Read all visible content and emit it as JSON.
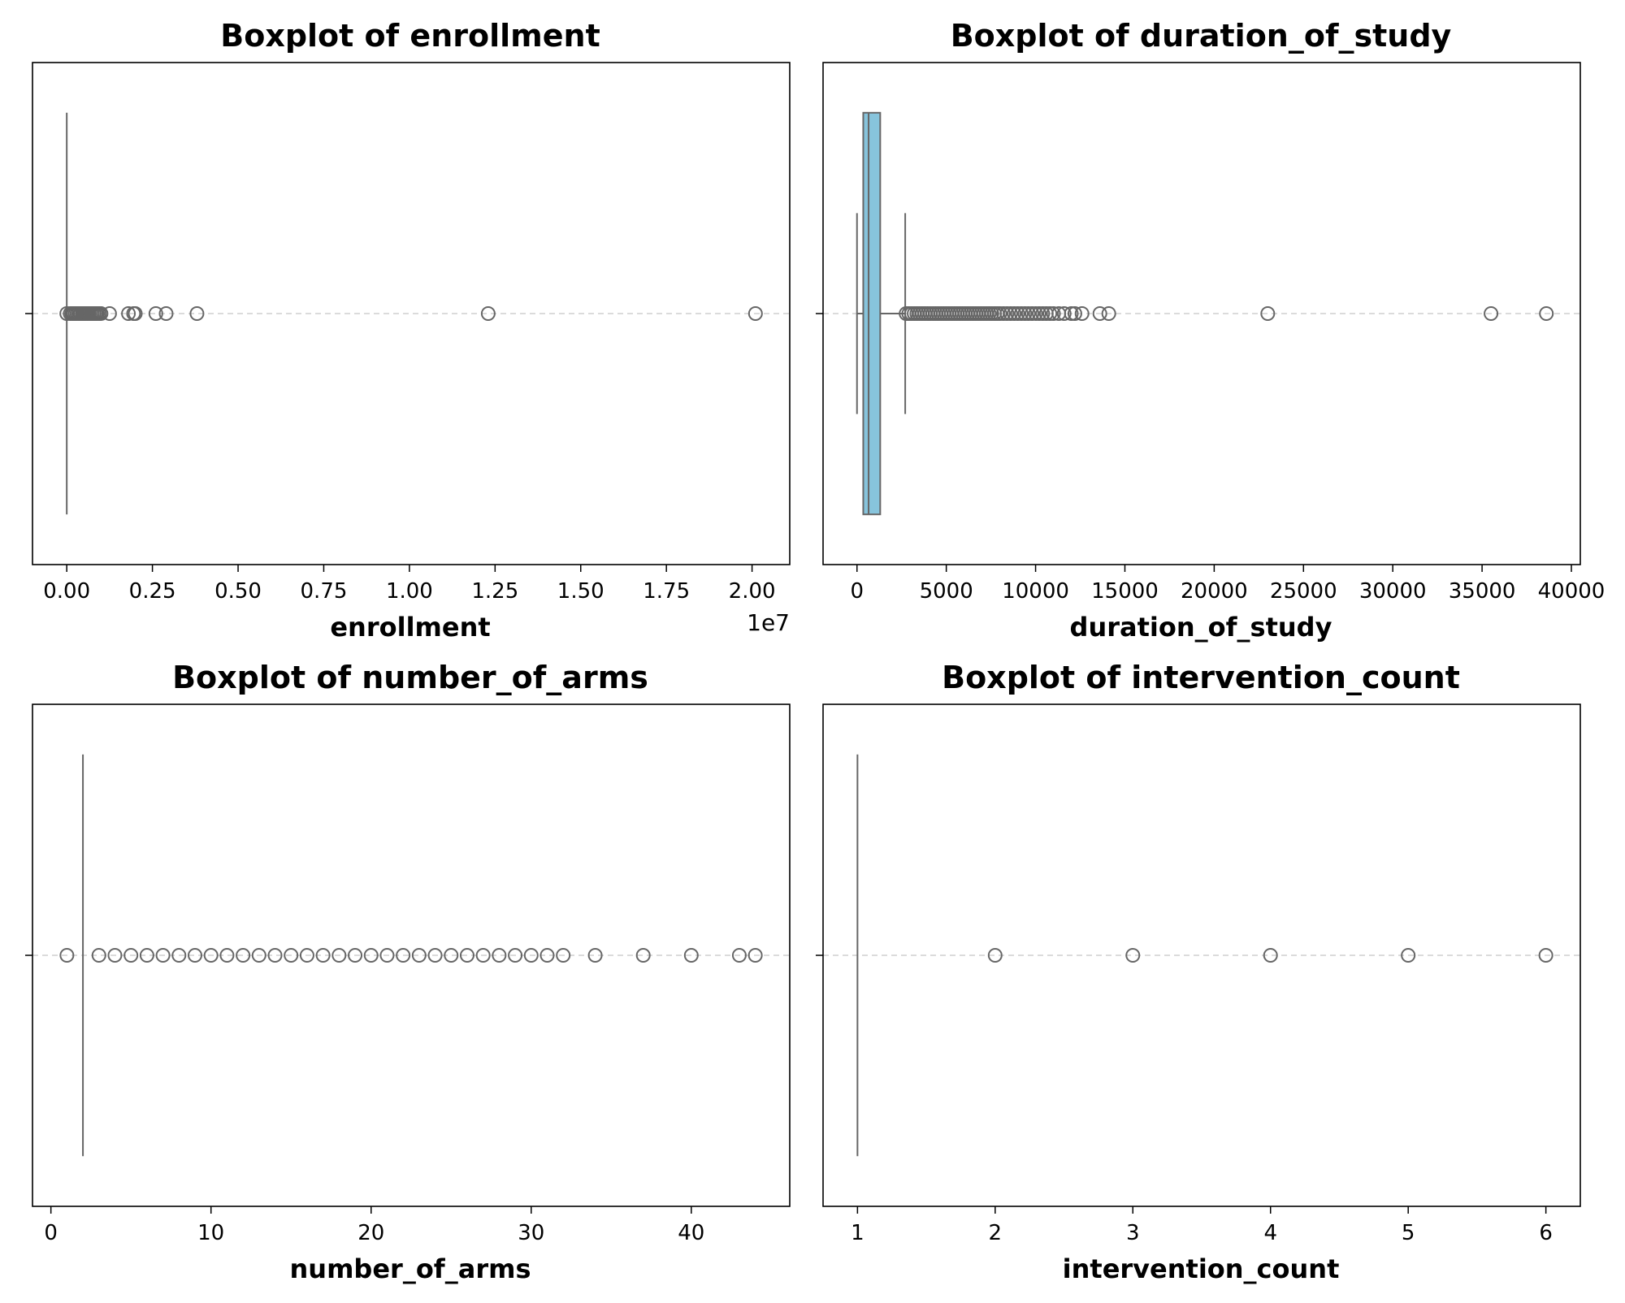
{
  "chart_data": [
    {
      "type": "boxplot",
      "title": "Boxplot of enrollment",
      "xlabel": "enrollment",
      "offset_text": "1e7",
      "xlim": [
        -0.1,
        2.11
      ],
      "xticks": [
        0.0,
        0.25,
        0.5,
        0.75,
        1.0,
        1.25,
        1.5,
        1.75,
        2.0
      ],
      "xtick_labels": [
        "0.00",
        "0.25",
        "0.50",
        "0.75",
        "1.00",
        "1.25",
        "1.50",
        "1.75",
        "2.00"
      ],
      "box": {
        "q1": 0.0,
        "median": 0.0,
        "q3": 0.0,
        "whisker_low": 0.0,
        "whisker_high": 0.0
      },
      "box_color": "#87c4dc",
      "outliers": [
        0.0,
        0.01,
        0.015,
        0.02,
        0.025,
        0.03,
        0.035,
        0.04,
        0.045,
        0.05,
        0.055,
        0.06,
        0.065,
        0.07,
        0.075,
        0.08,
        0.085,
        0.09,
        0.095,
        0.1,
        0.125,
        0.18,
        0.195,
        0.2,
        0.26,
        0.29,
        0.38,
        1.23,
        2.01
      ],
      "grid": "dashed horizontal line at category"
    },
    {
      "type": "boxplot",
      "title": "Boxplot of duration_of_study",
      "xlabel": "duration_of_study",
      "offset_text": "",
      "xlim": [
        -1900,
        40500
      ],
      "xticks": [
        0,
        5000,
        10000,
        15000,
        20000,
        25000,
        30000,
        35000,
        40000
      ],
      "xtick_labels": [
        "0",
        "5000",
        "10000",
        "15000",
        "20000",
        "25000",
        "30000",
        "35000",
        "40000"
      ],
      "box": {
        "q1": 350,
        "median": 650,
        "q3": 1300,
        "whisker_low": 0,
        "whisker_high": 2700
      },
      "box_color": "#87c4dc",
      "outliers": [
        2750,
        2900,
        3050,
        3200,
        3350,
        3500,
        3650,
        3800,
        3950,
        4100,
        4250,
        4400,
        4550,
        4700,
        4850,
        5000,
        5150,
        5300,
        5450,
        5600,
        5750,
        5900,
        6050,
        6200,
        6350,
        6500,
        6650,
        6800,
        6950,
        7100,
        7250,
        7400,
        7550,
        7700,
        7850,
        8000,
        8200,
        8400,
        8600,
        8800,
        9000,
        9200,
        9400,
        9600,
        9800,
        10000,
        10200,
        10400,
        10600,
        10800,
        11000,
        11300,
        11600,
        12000,
        12200,
        12600,
        13600,
        14100,
        23000,
        35500,
        38600
      ],
      "grid": "dashed horizontal line at category"
    },
    {
      "type": "boxplot",
      "title": "Boxplot of number_of_arms",
      "xlabel": "number_of_arms",
      "offset_text": "",
      "xlim": [
        -1.15,
        46.15
      ],
      "xticks": [
        0,
        10,
        20,
        30,
        40
      ],
      "xtick_labels": [
        "0",
        "10",
        "20",
        "30",
        "40"
      ],
      "box": {
        "q1": 2,
        "median": 2,
        "q3": 2,
        "whisker_low": 2,
        "whisker_high": 2
      },
      "box_color": "#87c4dc",
      "outliers": [
        1,
        3,
        4,
        5,
        6,
        7,
        8,
        9,
        10,
        11,
        12,
        13,
        14,
        15,
        16,
        17,
        18,
        19,
        20,
        21,
        22,
        23,
        24,
        25,
        26,
        27,
        28,
        29,
        30,
        31,
        32,
        34,
        37,
        40,
        43,
        44
      ],
      "grid": "dashed horizontal line at category"
    },
    {
      "type": "boxplot",
      "title": "Boxplot of intervention_count",
      "xlabel": "intervention_count",
      "offset_text": "",
      "xlim": [
        0.75,
        6.25
      ],
      "xticks": [
        1,
        2,
        3,
        4,
        5,
        6
      ],
      "xtick_labels": [
        "1",
        "2",
        "3",
        "4",
        "5",
        "6"
      ],
      "box": {
        "q1": 1,
        "median": 1,
        "q3": 1,
        "whisker_low": 1,
        "whisker_high": 1
      },
      "box_color": "#87c4dc",
      "outliers": [
        2,
        3,
        4,
        5,
        6
      ],
      "grid": "dashed horizontal line at category"
    }
  ]
}
